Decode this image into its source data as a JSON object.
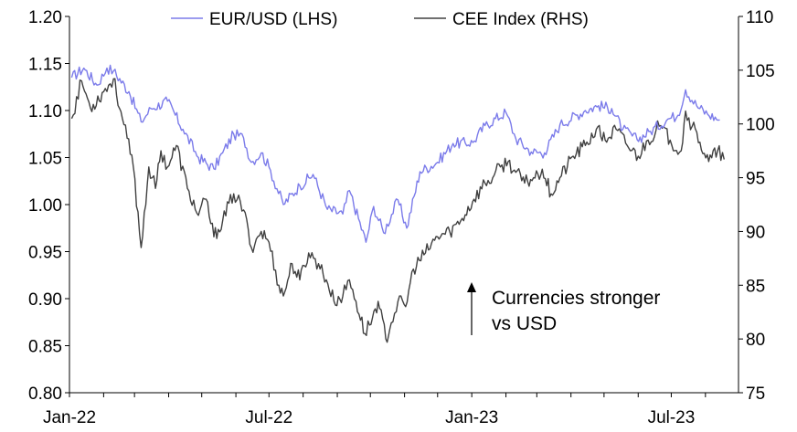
{
  "chart_data": {
    "type": "line",
    "x_labels": [
      "Jan-22",
      "Jul-22",
      "Jan-23",
      "Jul-23"
    ],
    "x_range": [
      "2022-01-01",
      "2023-08-31"
    ],
    "left_axis": {
      "ylim": [
        0.8,
        1.2
      ],
      "ticks": [
        "0.80",
        "0.85",
        "0.90",
        "0.95",
        "1.00",
        "1.05",
        "1.10",
        "1.15",
        "1.20"
      ]
    },
    "right_axis": {
      "ylim": [
        75,
        110
      ],
      "ticks": [
        "75",
        "80",
        "85",
        "90",
        "95",
        "100",
        "105",
        "110"
      ]
    },
    "legend_position": "top",
    "annotation": {
      "lines": [
        "Currencies stronger",
        "vs USD"
      ],
      "arrow": "up"
    },
    "series": [
      {
        "name": "EUR/USD (LHS)",
        "axis": "left",
        "color": "#7b7bea",
        "points": [
          [
            "2022-01-03",
            1.135
          ],
          [
            "2022-01-14",
            1.145
          ],
          [
            "2022-01-26",
            1.127
          ],
          [
            "2022-02-04",
            1.145
          ],
          [
            "2022-02-10",
            1.142
          ],
          [
            "2022-02-24",
            1.12
          ],
          [
            "2022-03-07",
            1.088
          ],
          [
            "2022-03-16",
            1.102
          ],
          [
            "2022-03-31",
            1.11
          ],
          [
            "2022-04-14",
            1.08
          ],
          [
            "2022-04-28",
            1.05
          ],
          [
            "2022-05-12",
            1.038
          ],
          [
            "2022-05-20",
            1.055
          ],
          [
            "2022-05-30",
            1.075
          ],
          [
            "2022-06-08",
            1.071
          ],
          [
            "2022-06-15",
            1.045
          ],
          [
            "2022-06-24",
            1.055
          ],
          [
            "2022-07-01",
            1.04
          ],
          [
            "2022-07-14",
            1.0
          ],
          [
            "2022-07-29",
            1.02
          ],
          [
            "2022-08-10",
            1.032
          ],
          [
            "2022-08-23",
            0.995
          ],
          [
            "2022-09-06",
            0.99
          ],
          [
            "2022-09-12",
            1.015
          ],
          [
            "2022-09-27",
            0.96
          ],
          [
            "2022-10-04",
            0.998
          ],
          [
            "2022-10-13",
            0.97
          ],
          [
            "2022-10-26",
            1.005
          ],
          [
            "2022-11-03",
            0.975
          ],
          [
            "2022-11-15",
            1.035
          ],
          [
            "2022-12-01",
            1.045
          ],
          [
            "2022-12-15",
            1.065
          ],
          [
            "2023-01-02",
            1.066
          ],
          [
            "2023-01-13",
            1.084
          ],
          [
            "2023-02-01",
            1.098
          ],
          [
            "2023-02-10",
            1.07
          ],
          [
            "2023-02-24",
            1.056
          ],
          [
            "2023-03-08",
            1.055
          ],
          [
            "2023-03-22",
            1.085
          ],
          [
            "2023-04-14",
            1.1
          ],
          [
            "2023-04-26",
            1.105
          ],
          [
            "2023-05-08",
            1.102
          ],
          [
            "2023-05-18",
            1.08
          ],
          [
            "2023-05-31",
            1.069
          ],
          [
            "2023-06-12",
            1.078
          ],
          [
            "2023-06-28",
            1.091
          ],
          [
            "2023-07-07",
            1.095
          ],
          [
            "2023-07-14",
            1.122
          ],
          [
            "2023-07-24",
            1.105
          ],
          [
            "2023-08-03",
            1.096
          ],
          [
            "2023-08-14",
            1.09
          ]
        ]
      },
      {
        "name": "CEE Index (RHS)",
        "axis": "right",
        "color": "#404040",
        "points": [
          [
            "2022-01-03",
            100.5
          ],
          [
            "2022-01-12",
            104.0
          ],
          [
            "2022-01-20",
            101.5
          ],
          [
            "2022-02-01",
            103.0
          ],
          [
            "2022-02-10",
            104.2
          ],
          [
            "2022-02-18",
            100.5
          ],
          [
            "2022-02-28",
            96.0
          ],
          [
            "2022-03-07",
            88.5
          ],
          [
            "2022-03-14",
            96.0
          ],
          [
            "2022-03-20",
            94.0
          ],
          [
            "2022-03-25",
            97.5
          ],
          [
            "2022-03-31",
            96.0
          ],
          [
            "2022-04-08",
            98.0
          ],
          [
            "2022-04-18",
            94.0
          ],
          [
            "2022-04-28",
            91.5
          ],
          [
            "2022-05-05",
            93.0
          ],
          [
            "2022-05-12",
            89.5
          ],
          [
            "2022-05-20",
            91.0
          ],
          [
            "2022-05-30",
            93.5
          ],
          [
            "2022-06-08",
            92.0
          ],
          [
            "2022-06-15",
            88.5
          ],
          [
            "2022-06-24",
            90.0
          ],
          [
            "2022-07-01",
            89.0
          ],
          [
            "2022-07-10",
            85.0
          ],
          [
            "2022-07-14",
            84.0
          ],
          [
            "2022-07-22",
            87.0
          ],
          [
            "2022-07-29",
            85.5
          ],
          [
            "2022-08-06",
            88.0
          ],
          [
            "2022-08-15",
            87.0
          ],
          [
            "2022-08-22",
            85.5
          ],
          [
            "2022-08-29",
            83.5
          ],
          [
            "2022-09-06",
            84.0
          ],
          [
            "2022-09-12",
            85.5
          ],
          [
            "2022-09-18",
            83.5
          ],
          [
            "2022-09-26",
            80.5
          ],
          [
            "2022-10-03",
            82.0
          ],
          [
            "2022-10-08",
            83.5
          ],
          [
            "2022-10-15",
            80.0
          ],
          [
            "2022-10-20",
            81.5
          ],
          [
            "2022-10-26",
            83.5
          ],
          [
            "2022-11-02",
            83.0
          ],
          [
            "2022-11-09",
            86.5
          ],
          [
            "2022-11-20",
            88.0
          ],
          [
            "2022-12-01",
            89.5
          ],
          [
            "2022-12-12",
            90.0
          ],
          [
            "2022-12-22",
            91.0
          ],
          [
            "2023-01-03",
            93.0
          ],
          [
            "2023-01-13",
            94.5
          ],
          [
            "2023-01-20",
            95.0
          ],
          [
            "2023-01-27",
            96.0
          ],
          [
            "2023-02-03",
            96.5
          ],
          [
            "2023-02-10",
            95.5
          ],
          [
            "2023-02-18",
            94.5
          ],
          [
            "2023-02-26",
            95.0
          ],
          [
            "2023-03-06",
            95.8
          ],
          [
            "2023-03-14",
            93.5
          ],
          [
            "2023-03-22",
            95.0
          ],
          [
            "2023-04-03",
            97.0
          ],
          [
            "2023-04-14",
            98.0
          ],
          [
            "2023-04-24",
            99.5
          ],
          [
            "2023-05-02",
            98.5
          ],
          [
            "2023-05-12",
            99.5
          ],
          [
            "2023-05-22",
            98.0
          ],
          [
            "2023-06-01",
            97.0
          ],
          [
            "2023-06-10",
            98.5
          ],
          [
            "2023-06-20",
            99.8
          ],
          [
            "2023-06-30",
            98.5
          ],
          [
            "2023-07-10",
            97.5
          ],
          [
            "2023-07-14",
            101.2
          ],
          [
            "2023-07-20",
            99.8
          ],
          [
            "2023-07-27",
            98.3
          ],
          [
            "2023-08-04",
            96.5
          ],
          [
            "2023-08-12",
            97.5
          ],
          [
            "2023-08-18",
            96.7
          ]
        ]
      }
    ]
  }
}
